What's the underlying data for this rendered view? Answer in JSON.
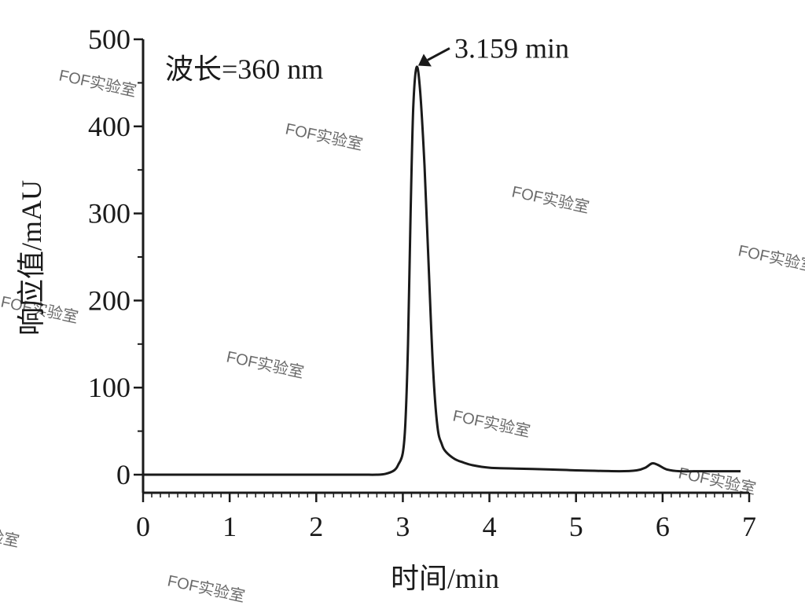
{
  "chart_data": {
    "type": "line",
    "xlabel": "时间/min",
    "ylabel": "响应值/mAU",
    "xlim": [
      0,
      7
    ],
    "ylim": [
      0,
      500
    ],
    "xticks": [
      0,
      1,
      2,
      3,
      4,
      5,
      6,
      7
    ],
    "yticks": [
      0,
      100,
      200,
      300,
      400,
      500
    ],
    "grid": false,
    "legend": "none",
    "annotations": [
      {
        "text": "波长=360 nm"
      },
      {
        "text": "3.159 min",
        "points_to": [
          3.159,
          468
        ]
      }
    ],
    "series": [
      {
        "color": "#1a1a1a",
        "x": [
          0,
          0.5,
          1.0,
          1.5,
          2.0,
          2.5,
          2.7,
          2.8,
          2.9,
          2.95,
          3.0,
          3.03,
          3.06,
          3.09,
          3.12,
          3.159,
          3.2,
          3.25,
          3.3,
          3.35,
          3.4,
          3.45,
          3.5,
          3.6,
          3.7,
          3.8,
          4.0,
          4.3,
          4.7,
          5.0,
          5.5,
          5.7,
          5.8,
          5.88,
          5.95,
          6.05,
          6.2,
          6.5,
          6.9
        ],
        "y": [
          0,
          0,
          0,
          0,
          0,
          0,
          0,
          1,
          5,
          12,
          25,
          60,
          150,
          300,
          420,
          468,
          440,
          355,
          235,
          120,
          55,
          35,
          26,
          18,
          14,
          11,
          8,
          7,
          6,
          5,
          4,
          5,
          8,
          13,
          11,
          6,
          4,
          4,
          4
        ]
      }
    ]
  },
  "watermarks": [
    "FOF实验室",
    "FOF实验室",
    "FOF实验室",
    "FOF实验室",
    "FOF实验室",
    "FOF实验室",
    "FOF实验室",
    "FOF实验室",
    "FOF实验室",
    "FOF实验室"
  ]
}
